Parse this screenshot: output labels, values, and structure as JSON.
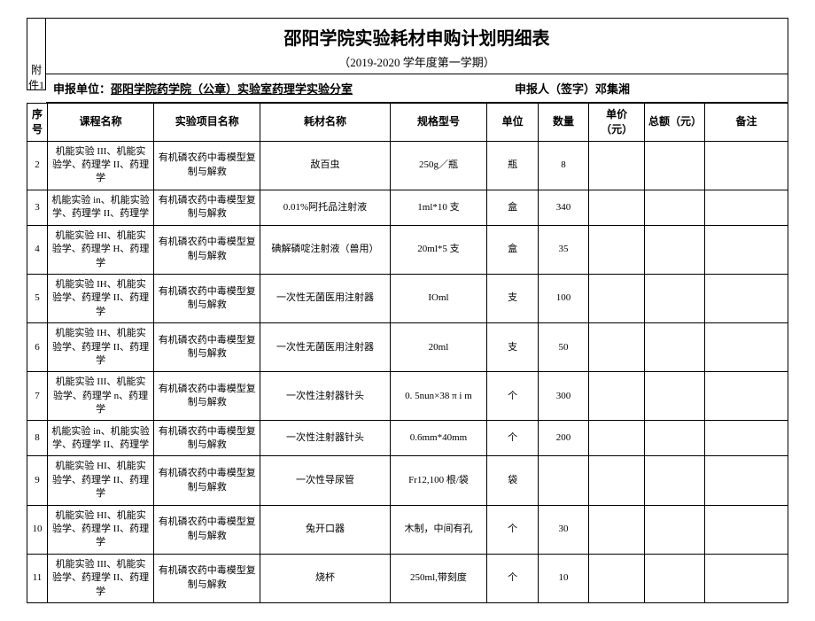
{
  "side_label": "附件1",
  "title": "邵阳学院实验耗材申购计划明细表",
  "subtitle": "（2019-2020 学年度第一学期）",
  "meta": {
    "left_label": "申报单位：",
    "left_value": "邵阳学院药学院（公章）实验室药理学实验分室",
    "right_label": "申报人（签字）",
    "right_value": "邓集湘"
  },
  "columns": {
    "seq": "序号",
    "course": "课程名称",
    "project": "实验项目名称",
    "material": "耗材名称",
    "spec": "规格型号",
    "unit": "单位",
    "qty": "数量",
    "price": "单价（元）",
    "total": "总额（元）",
    "note": "备注"
  },
  "rows": [
    {
      "seq": "2",
      "course": "机能实验 III、机能实验学、药理学 II、药理学",
      "project": "有机磷农药中毒模型复制与解救",
      "material": "敌百虫",
      "spec": "250g／瓶",
      "unit": "瓶",
      "qty": "8",
      "price": "",
      "total": "",
      "note": ""
    },
    {
      "seq": "3",
      "course": "机能实验 in、机能实验学、药理学 II、药理学",
      "project": "有机磷农药中毒模型复制与解救",
      "material": "0.01%阿托品注射液",
      "spec": "1ml*10 支",
      "unit": "盒",
      "qty": "340",
      "price": "",
      "total": "",
      "note": ""
    },
    {
      "seq": "4",
      "course": "机能实验 HI、机能实验学、药理学 H、药理学",
      "project": "有机磷农药中毒模型复制与解救",
      "material": "碘解磷啶注射液（兽用）",
      "spec": "20ml*5 支",
      "unit": "盒",
      "qty": "35",
      "price": "",
      "total": "",
      "note": ""
    },
    {
      "seq": "5",
      "course": "机能实验 IH、机能实验学、药理学 II、药理学",
      "project": "有机磷农药中毒模型复制与解救",
      "material": "一次性无菌医用注射器",
      "spec": "IOml",
      "unit": "支",
      "qty": "100",
      "price": "",
      "total": "",
      "note": ""
    },
    {
      "seq": "6",
      "course": "机能实验 IH、机能实验学、药理学 II、药理学",
      "project": "有机磷农药中毒模型复制与解救",
      "material": "一次性无菌医用注射器",
      "spec": "20ml",
      "unit": "支",
      "qty": "50",
      "price": "",
      "total": "",
      "note": ""
    },
    {
      "seq": "7",
      "course": "机能实验 III、机能实验学、药理学 n、药理学",
      "project": "有机磷农药中毒模型复制与解救",
      "material": "一次性注射器针头",
      "spec": "0. 5nun×38 π i m",
      "unit": "个",
      "qty": "300",
      "price": "",
      "total": "",
      "note": ""
    },
    {
      "seq": "8",
      "course": "机能实验 in、机能实验学、药理学 II、药理学",
      "project": "有机磷农药中毒模型复制与解救",
      "material": "一次性注射器针头",
      "spec": "0.6mm*40mm",
      "unit": "个",
      "qty": "200",
      "price": "",
      "total": "",
      "note": ""
    },
    {
      "seq": "9",
      "course": "机能实验 HI、机能实验学、药理学 II、药理学",
      "project": "有机磷农药中毒模型复制与解救",
      "material": "一次性导尿管",
      "spec": "Fr12,100 根/袋",
      "unit": "袋",
      "qty": "",
      "price": "",
      "total": "",
      "note": ""
    },
    {
      "seq": "10",
      "course": "机能实验 HI、机能实验学、药理学 II、药理学",
      "project": "有机磷农药中毒模型复制与解救",
      "material": "兔开口器",
      "spec": "木制，中间有孔",
      "unit": "个",
      "qty": "30",
      "price": "",
      "total": "",
      "note": ""
    },
    {
      "seq": "11",
      "course": "机能实验 III、机能实验学、药理学 II、药理学",
      "project": "有机磷农药中毒模型复制与解救",
      "material": "烧杯",
      "spec": "250ml,带刻度",
      "unit": "个",
      "qty": "10",
      "price": "",
      "total": "",
      "note": ""
    }
  ]
}
